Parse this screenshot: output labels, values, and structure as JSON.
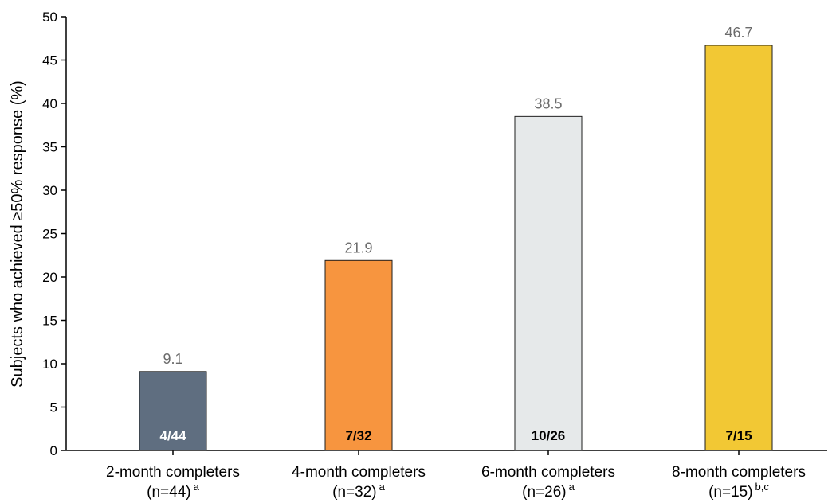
{
  "chart_data": {
    "type": "bar",
    "title": "",
    "ylabel": "Subjects who achieved ≥50% response (%)",
    "xlabel": "",
    "ylim": [
      0,
      50
    ],
    "yticks": [
      0,
      5,
      10,
      15,
      20,
      25,
      30,
      35,
      40,
      45,
      50
    ],
    "grid": false,
    "categories": [
      {
        "line1": "2-month completers",
        "line2": "(n=44)",
        "sup": "a"
      },
      {
        "line1": "4-month completers",
        "line2": "(n=32)",
        "sup": "a"
      },
      {
        "line1": "6-month completers",
        "line2": "(n=26)",
        "sup": "a"
      },
      {
        "line1": "8-month completers",
        "line2": "(n=15)",
        "sup": "b,c"
      }
    ],
    "values": [
      9.1,
      21.9,
      38.5,
      46.7
    ],
    "value_labels": [
      "9.1",
      "21.9",
      "38.5",
      "46.7"
    ],
    "bar_labels": [
      "4/44",
      "7/32",
      "10/26",
      "7/15"
    ],
    "bar_colors": [
      "#5f6e80",
      "#f7953f",
      "#e6e9ea",
      "#f2c834"
    ],
    "bar_label_colors": [
      "#ffffff",
      "#000000",
      "#000000",
      "#000000"
    ]
  }
}
